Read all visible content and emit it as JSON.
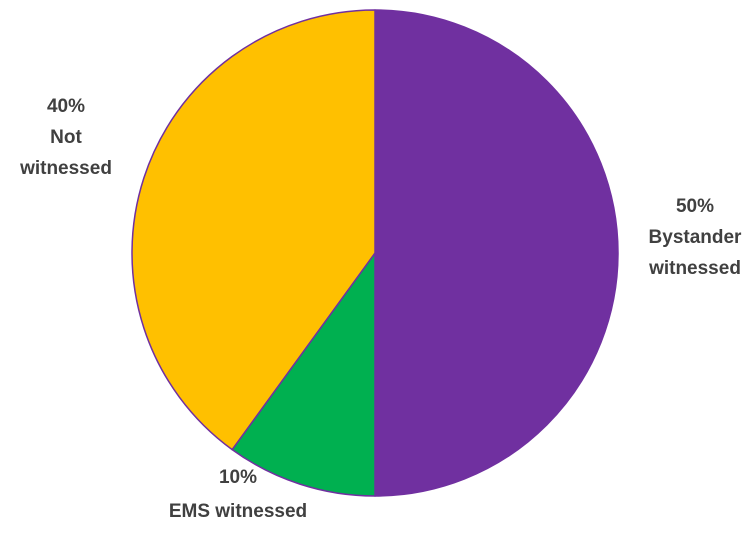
{
  "chart_data": {
    "type": "pie",
    "title": "",
    "start_angle_deg": 0,
    "direction": "clockwise",
    "slices": [
      {
        "label": "Bystander witnessed",
        "percent_label": "50%",
        "value": 50,
        "color": "#7030A0"
      },
      {
        "label": "EMS witnessed",
        "percent_label": "10%",
        "value": 10,
        "color": "#00B050"
      },
      {
        "label": "Not witnessed",
        "percent_label": "40%",
        "value": 40,
        "color": "#FFC000"
      }
    ],
    "data_labels": [
      {
        "lines": [
          "50%",
          "Bystander",
          "witnessed"
        ]
      },
      {
        "lines": [
          "10%",
          "EMS witnessed"
        ]
      },
      {
        "lines": [
          "40%",
          "Not",
          "witnessed"
        ]
      }
    ],
    "slice_border_color": "#7030A0",
    "label_color": "#404040",
    "legend": "none"
  }
}
